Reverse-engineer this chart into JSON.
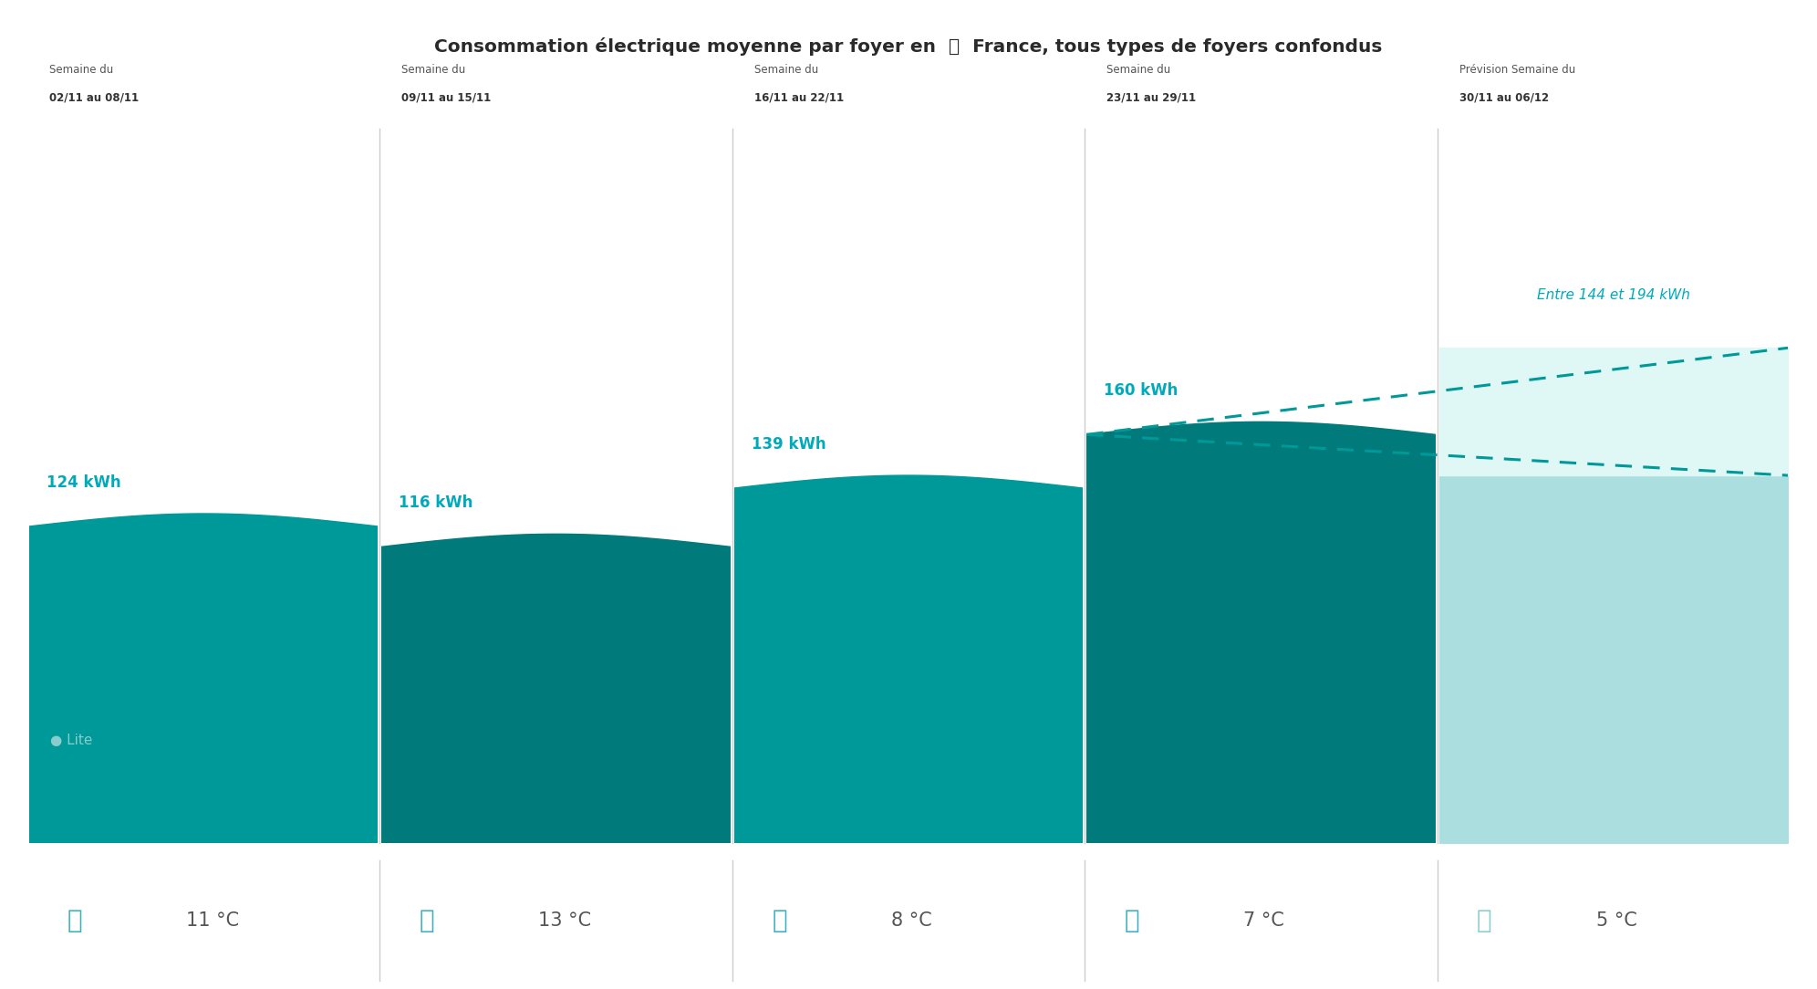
{
  "title": "Consommation électrique moyenne par foyer en 📍 France, tous types de foyers confondus",
  "weeks": [
    {
      "line1": "Semaine du",
      "line2": "02/11 au 08/11",
      "kwh": 124,
      "temp": "11 °C",
      "is_forecast": false
    },
    {
      "line1": "Semaine du",
      "line2": "09/11 au 15/11",
      "kwh": 116,
      "temp": "13 °C",
      "is_forecast": false
    },
    {
      "line1": "Semaine du",
      "line2": "16/11 au 22/11",
      "kwh": 139,
      "temp": "8 °C",
      "is_forecast": false
    },
    {
      "line1": "Semaine du",
      "line2": "23/11 au 29/11",
      "kwh": 160,
      "temp": "7 °C",
      "is_forecast": false
    },
    {
      "line1": "Prévision Semaine du",
      "line2": "30/11 au 06/12",
      "kwh_min": 144,
      "kwh_max": 194,
      "temp": "5 °C",
      "is_forecast": true
    }
  ],
  "max_kwh": 280,
  "teal_even": "#009999",
  "teal_odd": "#007a7a",
  "teal_light": "#aadedf",
  "teal_very_light": "#cff0ee",
  "forecast_fill_light": "#e0f8f5",
  "forecast_bg": "#fdfff0",
  "panel_bg": "#f5f5f5",
  "kwh_label_color": "#00aabb",
  "forecast_label_color": "#00aabb",
  "temp_color_normal": "#3ab0c0",
  "temp_color_forecast": "#88cccc",
  "lite_color": "#88cccc",
  "divider_color": "#cccccc",
  "header_color1": "#555555",
  "header_color2": "#333333",
  "temp_bg": "#f0f0f0"
}
